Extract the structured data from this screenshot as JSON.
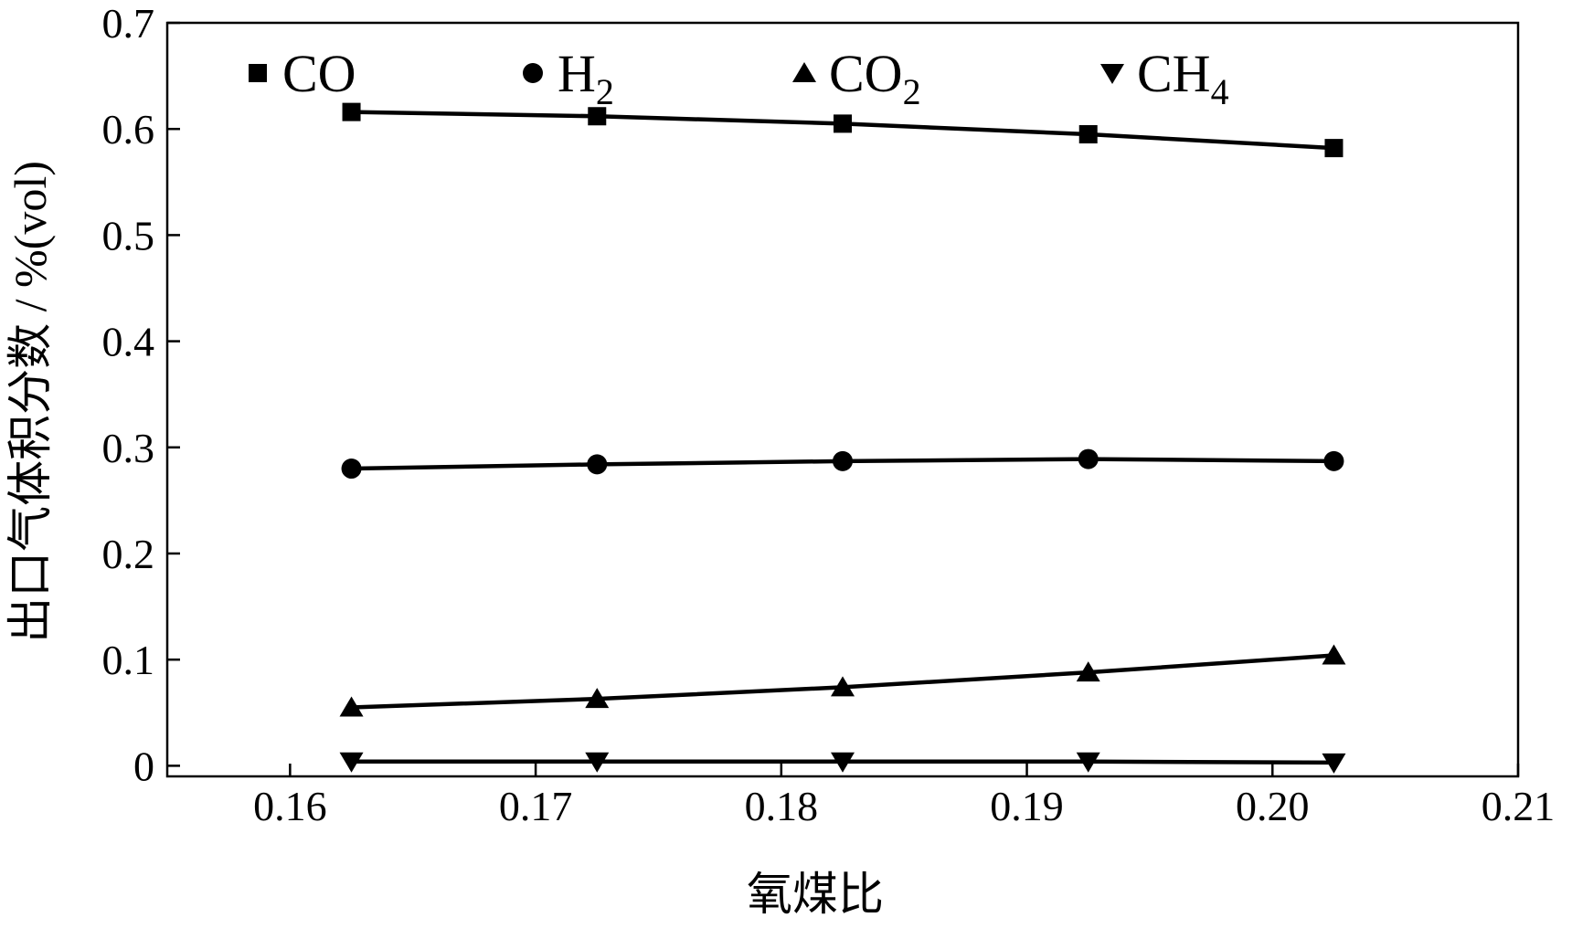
{
  "chart_data": {
    "type": "line",
    "title": "",
    "xlabel": "氧煤比",
    "ylabel": "出口气体积分数 / %(vol)",
    "xlim": [
      0.155,
      0.21
    ],
    "ylim": [
      -0.01,
      0.7
    ],
    "x_ticks": [
      0.16,
      0.17,
      0.18,
      0.19,
      0.2,
      0.21
    ],
    "x_tick_labels": [
      "0.16",
      "0.17",
      "0.18",
      "0.19",
      "0.20",
      "0.21"
    ],
    "y_ticks": [
      0,
      0.1,
      0.2,
      0.3,
      0.4,
      0.5,
      0.6,
      0.7
    ],
    "y_tick_labels": [
      "0",
      "0.1",
      "0.2",
      "0.3",
      "0.4",
      "0.5",
      "0.6",
      "0.7"
    ],
    "x": [
      0.1625,
      0.1725,
      0.1825,
      0.1925,
      0.2025
    ],
    "series": [
      {
        "name": "CO",
        "label_main": "CO",
        "label_sub": "",
        "marker": "square",
        "values": [
          0.616,
          0.612,
          0.605,
          0.595,
          0.582
        ]
      },
      {
        "name": "H2",
        "label_main": "H",
        "label_sub": "2",
        "marker": "circle",
        "values": [
          0.28,
          0.284,
          0.287,
          0.289,
          0.287
        ]
      },
      {
        "name": "CO2",
        "label_main": "CO",
        "label_sub": "2",
        "marker": "triangle-up",
        "values": [
          0.055,
          0.063,
          0.074,
          0.088,
          0.104
        ]
      },
      {
        "name": "CH4",
        "label_main": "CH",
        "label_sub": "4",
        "marker": "triangle-down",
        "values": [
          0.004,
          0.004,
          0.004,
          0.004,
          0.003
        ]
      }
    ],
    "legend_position": "top",
    "grid": false,
    "line_color": "#000000"
  }
}
